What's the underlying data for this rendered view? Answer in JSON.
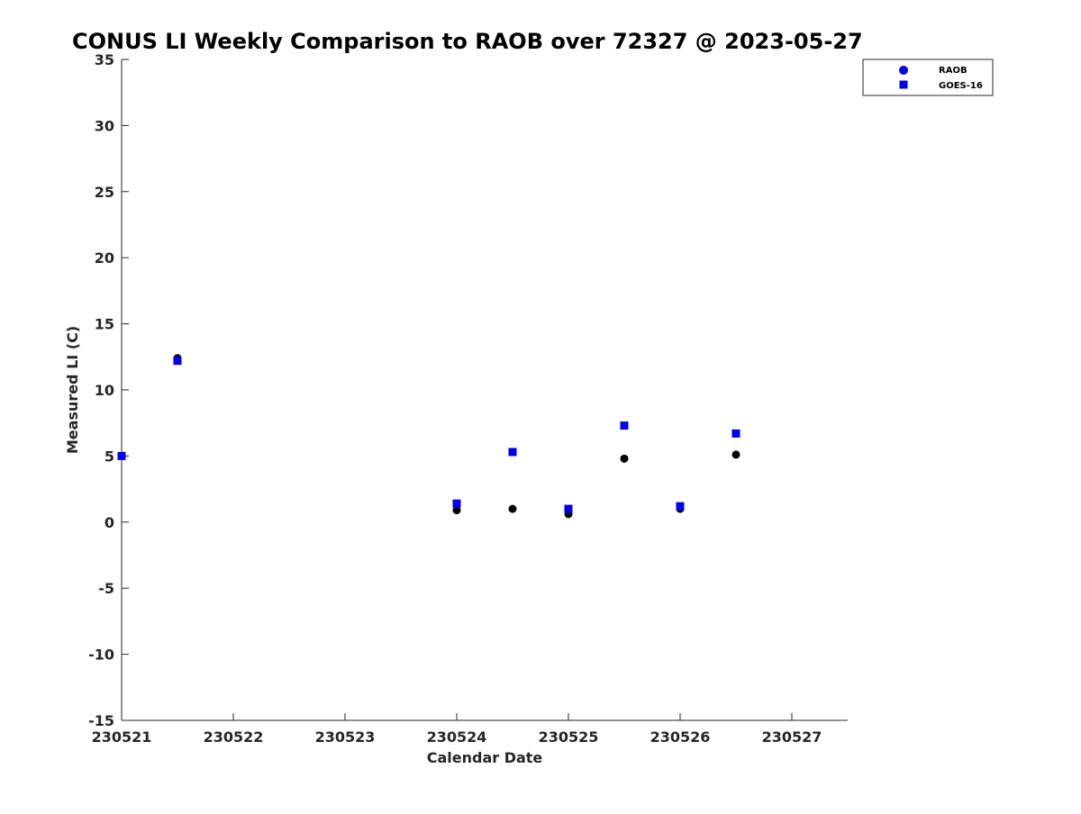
{
  "chart_data": {
    "type": "scatter",
    "title": "CONUS LI Weekly Comparison to RAOB over 72327 @ 2023-05-27",
    "xlabel": "Calendar Date",
    "ylabel": "Measured LI (C)",
    "xlim": [
      0,
      6.5
    ],
    "ylim": [
      -15,
      35
    ],
    "x_ticks": [
      0,
      1,
      2,
      3,
      4,
      5,
      6
    ],
    "x_tick_labels": [
      "230521",
      "230522",
      "230523",
      "230524",
      "230525",
      "230526",
      "230527"
    ],
    "y_ticks": [
      -15,
      -10,
      -5,
      0,
      5,
      10,
      15,
      20,
      25,
      30,
      35
    ],
    "y_tick_labels": [
      "-15",
      "-10",
      "-5",
      "0",
      "5",
      "10",
      "15",
      "20",
      "25",
      "30",
      "35"
    ],
    "grid": false,
    "legend_position": "top-right",
    "series": [
      {
        "name": "RAOB",
        "marker": "circle",
        "color": "#000000",
        "legend_color": "#0000ee",
        "x": [
          0.5,
          3.0,
          3.5,
          4.0,
          4.5,
          5.0,
          5.5
        ],
        "y": [
          12.4,
          0.9,
          1.0,
          0.6,
          4.8,
          1.0,
          5.1
        ]
      },
      {
        "name": "GOES-16",
        "marker": "square",
        "color": "#0000ee",
        "x": [
          0.0,
          0.5,
          3.0,
          3.5,
          4.0,
          4.5,
          5.0,
          5.5
        ],
        "y": [
          5.0,
          12.2,
          1.4,
          5.3,
          1.0,
          7.3,
          1.2,
          6.7
        ]
      }
    ]
  }
}
